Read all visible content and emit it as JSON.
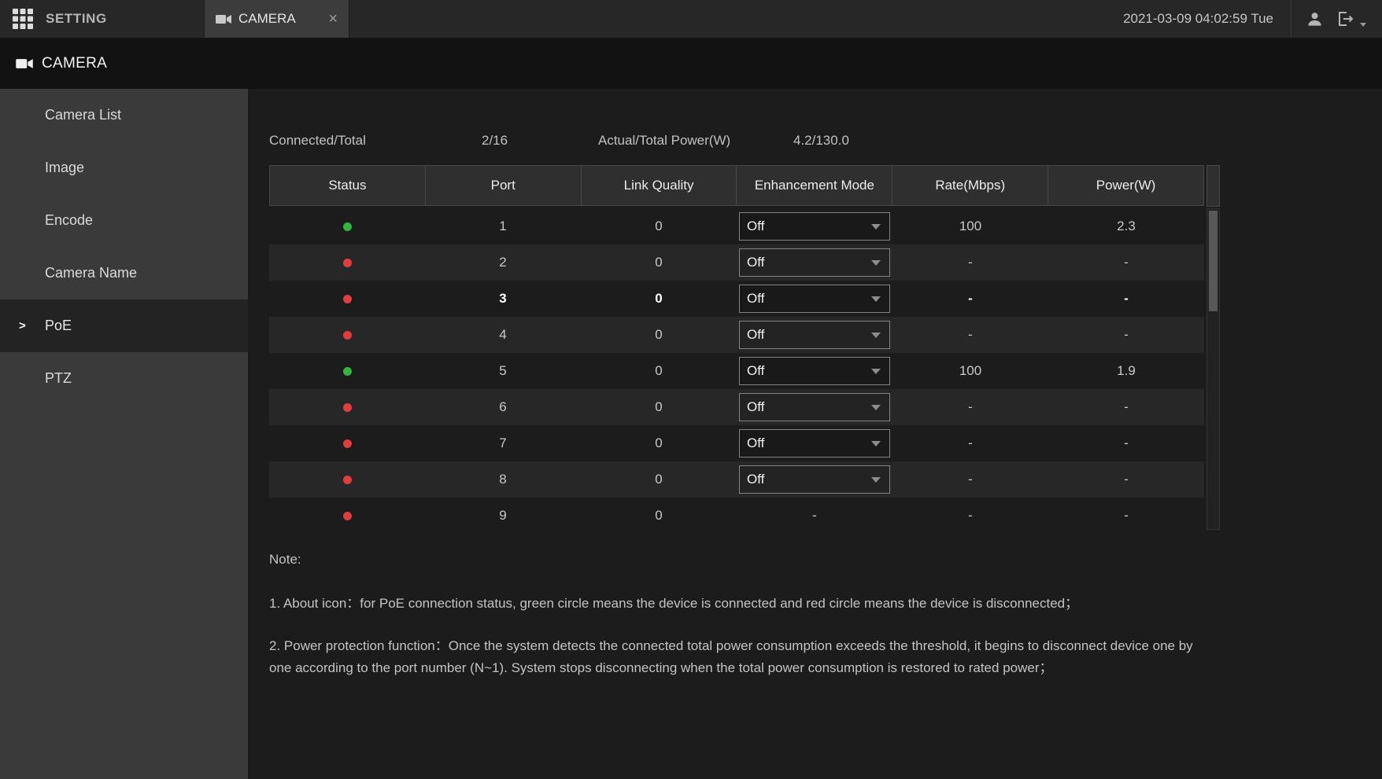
{
  "topbar": {
    "setting_label": "SETTING",
    "tab": {
      "label": "CAMERA",
      "close": "×"
    },
    "datetime": "2021-03-09 04:02:59 Tue"
  },
  "page": {
    "title": "CAMERA"
  },
  "sidebar": {
    "items": [
      {
        "label": "Camera List",
        "active": false
      },
      {
        "label": "Image",
        "active": false
      },
      {
        "label": "Encode",
        "active": false
      },
      {
        "label": "Camera Name",
        "active": false
      },
      {
        "label": "PoE",
        "active": true
      },
      {
        "label": "PTZ",
        "active": false
      }
    ]
  },
  "summary": {
    "connected_label": "Connected/Total",
    "connected_value": "2/16",
    "power_label": "Actual/Total Power(W)",
    "power_value": "4.2/130.0"
  },
  "table": {
    "headers": [
      "Status",
      "Port",
      "Link Quality",
      "Enhancement Mode",
      "Rate(Mbps)",
      "Power(W)"
    ],
    "rows": [
      {
        "status": "connected",
        "port": "1",
        "link_quality": "0",
        "enhancement_mode": "Off",
        "rate": "100",
        "power": "2.3",
        "control": "select",
        "selected": false
      },
      {
        "status": "disconnected",
        "port": "2",
        "link_quality": "0",
        "enhancement_mode": "Off",
        "rate": "-",
        "power": "-",
        "control": "select",
        "selected": false
      },
      {
        "status": "disconnected",
        "port": "3",
        "link_quality": "0",
        "enhancement_mode": "Off",
        "rate": "-",
        "power": "-",
        "control": "select",
        "selected": true
      },
      {
        "status": "disconnected",
        "port": "4",
        "link_quality": "0",
        "enhancement_mode": "Off",
        "rate": "-",
        "power": "-",
        "control": "select",
        "selected": false
      },
      {
        "status": "connected",
        "port": "5",
        "link_quality": "0",
        "enhancement_mode": "Off",
        "rate": "100",
        "power": "1.9",
        "control": "select",
        "selected": false
      },
      {
        "status": "disconnected",
        "port": "6",
        "link_quality": "0",
        "enhancement_mode": "Off",
        "rate": "-",
        "power": "-",
        "control": "select",
        "selected": false
      },
      {
        "status": "disconnected",
        "port": "7",
        "link_quality": "0",
        "enhancement_mode": "Off",
        "rate": "-",
        "power": "-",
        "control": "select",
        "selected": false
      },
      {
        "status": "disconnected",
        "port": "8",
        "link_quality": "0",
        "enhancement_mode": "Off",
        "rate": "-",
        "power": "-",
        "control": "select",
        "selected": false
      },
      {
        "status": "disconnected",
        "port": "9",
        "link_quality": "0",
        "enhancement_mode": "-",
        "rate": "-",
        "power": "-",
        "control": "text",
        "selected": false
      }
    ]
  },
  "notes": {
    "title": "Note:",
    "items": [
      "1. About icon：for PoE connection status, green circle means the device is connected and red circle means the device is disconnected；",
      "2. Power protection function：Once the system detects the connected total power consumption exceeds the threshold, it begins to disconnect device one by one according to the port number (N~1). System stops disconnecting when the total power consumption is restored to rated power；"
    ]
  },
  "colors": {
    "status_connected": "#33b540",
    "status_disconnected": "#e03e3e"
  }
}
